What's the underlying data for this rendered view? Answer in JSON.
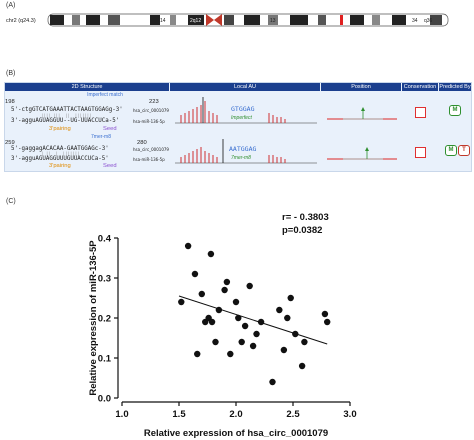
{
  "panels": {
    "a": "(A)",
    "b": "(B)",
    "c": "(C)"
  },
  "chromosome": {
    "label": "chr2 (q24.3)",
    "bands": [
      "21",
      "14",
      "2q12",
      "13",
      "34",
      "q36"
    ]
  },
  "table": {
    "headers": [
      "2D Structure",
      "Local AU",
      "Position",
      "Conservation",
      "Predicted By"
    ],
    "rows": [
      {
        "start": "198",
        "end": "223",
        "top_seq": "5'-ctgGTCATGAAATTACTAAGTGGAGg-3'",
        "bottom_seq": "3'-agguAGUAGGUU--UG-UUACCUCa-5'",
        "match_type": "Imperfect match",
        "pairing_label": "3'pairing",
        "seed_label": "Seed",
        "target_tag": "hsa_circ_0001079",
        "mirna_tag": "hsa-miR-136-5p",
        "au_seed_text": "GTGGAG",
        "au_caption": "Imperfect",
        "predictors": [
          "M"
        ]
      },
      {
        "start": "259",
        "end": "280",
        "top_seq": "5'-gaggagACACAA-GAATGGAGc-3'",
        "bottom_seq": "3'-agguAGUAGGUUUGUUACCUCa-5'",
        "match_type": "7mer-m8",
        "pairing_label": "3'pairing",
        "seed_label": "Seed",
        "target_tag": "hsa_circ_0001079",
        "mirna_tag": "hsa-miR-136-5p",
        "au_seed_text": "AATGGAG",
        "au_caption": "7mer-m8",
        "predictors": [
          "M",
          "T"
        ]
      }
    ]
  },
  "chart_data": {
    "type": "scatter",
    "xlabel": "Relative expression of hsa_circ_0001079",
    "ylabel": "Relative expression of miR-136-5P",
    "xlim": [
      1.0,
      3.0
    ],
    "ylim": [
      0.0,
      0.4
    ],
    "xticks": [
      "1.0",
      "1.5",
      "2.0",
      "2.5",
      "3.0"
    ],
    "yticks": [
      "0.0",
      "0.1",
      "0.2",
      "0.3",
      "0.4"
    ],
    "annotation": [
      "r= - 0.3803",
      "p=0.0382"
    ],
    "points": [
      [
        1.52,
        0.24
      ],
      [
        1.58,
        0.38
      ],
      [
        1.64,
        0.31
      ],
      [
        1.66,
        0.11
      ],
      [
        1.7,
        0.26
      ],
      [
        1.73,
        0.19
      ],
      [
        1.76,
        0.2
      ],
      [
        1.78,
        0.36
      ],
      [
        1.79,
        0.19
      ],
      [
        1.82,
        0.14
      ],
      [
        1.85,
        0.22
      ],
      [
        1.9,
        0.27
      ],
      [
        1.92,
        0.29
      ],
      [
        1.95,
        0.11
      ],
      [
        2.0,
        0.24
      ],
      [
        2.02,
        0.2
      ],
      [
        2.05,
        0.14
      ],
      [
        2.08,
        0.18
      ],
      [
        2.12,
        0.28
      ],
      [
        2.15,
        0.13
      ],
      [
        2.18,
        0.16
      ],
      [
        2.22,
        0.19
      ],
      [
        2.32,
        0.04
      ],
      [
        2.38,
        0.22
      ],
      [
        2.42,
        0.12
      ],
      [
        2.45,
        0.2
      ],
      [
        2.48,
        0.25
      ],
      [
        2.52,
        0.16
      ],
      [
        2.58,
        0.08
      ],
      [
        2.6,
        0.14
      ],
      [
        2.78,
        0.21
      ],
      [
        2.8,
        0.19
      ]
    ],
    "regression": {
      "x": [
        1.5,
        2.8
      ],
      "y": [
        0.255,
        0.135
      ]
    },
    "colors": {
      "points": "#111111",
      "line": "#111111"
    }
  }
}
